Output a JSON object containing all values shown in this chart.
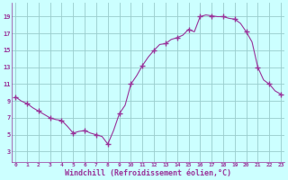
{
  "x": [
    0,
    0.5,
    1,
    1.5,
    2,
    2.5,
    3,
    3.5,
    4,
    4.5,
    5,
    5.5,
    6,
    6.5,
    7,
    7.5,
    8,
    8.5,
    9,
    9.5,
    10,
    10.5,
    11,
    11.5,
    12,
    12.5,
    13,
    13.5,
    14,
    14.5,
    15,
    15.5,
    16,
    16.5,
    17,
    17.5,
    18,
    18.5,
    19,
    19.5,
    20,
    20.5,
    21,
    21.5,
    22,
    22.5,
    23
  ],
  "y": [
    9.5,
    9.0,
    8.7,
    8.2,
    7.8,
    7.4,
    7.0,
    6.8,
    6.7,
    6.0,
    5.2,
    5.4,
    5.5,
    5.2,
    5.0,
    4.8,
    3.9,
    5.5,
    7.5,
    8.5,
    11.0,
    12.0,
    13.2,
    14.2,
    15.0,
    15.7,
    15.8,
    16.3,
    16.5,
    16.8,
    17.5,
    17.2,
    19.0,
    19.2,
    19.1,
    19.0,
    19.0,
    18.8,
    18.7,
    18.2,
    17.2,
    16.0,
    13.0,
    11.5,
    11.0,
    10.2,
    9.8
  ],
  "marker_x": [
    0,
    1,
    2,
    3,
    4,
    5,
    6,
    7,
    8,
    9,
    10,
    11,
    12,
    13,
    14,
    15,
    16,
    17,
    18,
    19,
    20,
    21,
    22,
    23
  ],
  "marker_y": [
    9.5,
    8.7,
    7.8,
    7.0,
    6.7,
    5.2,
    5.5,
    5.0,
    3.9,
    7.5,
    11.0,
    13.2,
    15.0,
    15.8,
    16.5,
    17.5,
    19.0,
    19.1,
    19.0,
    18.7,
    17.2,
    13.0,
    11.0,
    9.8
  ],
  "line_color": "#993399",
  "marker": "+",
  "marker_size": 4,
  "bg_color": "#ccffff",
  "grid_color": "#99cccc",
  "xlabel": "Windchill (Refroidissement éolien,°C)",
  "xlabel_color": "#993399",
  "xtick_labels": [
    "0",
    "1",
    "2",
    "3",
    "4",
    "5",
    "6",
    "7",
    "8",
    "9",
    "10",
    "11",
    "12",
    "13",
    "14",
    "15",
    "16",
    "17",
    "18",
    "19",
    "20",
    "21",
    "22",
    "23"
  ],
  "xtick_values": [
    0,
    1,
    2,
    3,
    4,
    5,
    6,
    7,
    8,
    9,
    10,
    11,
    12,
    13,
    14,
    15,
    16,
    17,
    18,
    19,
    20,
    21,
    22,
    23
  ],
  "ytick_labels": [
    "3",
    "5",
    "7",
    "9",
    "11",
    "13",
    "15",
    "17",
    "19"
  ],
  "ytick_values": [
    3,
    5,
    7,
    9,
    11,
    13,
    15,
    17,
    19
  ],
  "ylim": [
    1.8,
    20.6
  ],
  "xlim": [
    -0.3,
    23.3
  ],
  "figsize": [
    3.2,
    2.0
  ],
  "dpi": 100
}
